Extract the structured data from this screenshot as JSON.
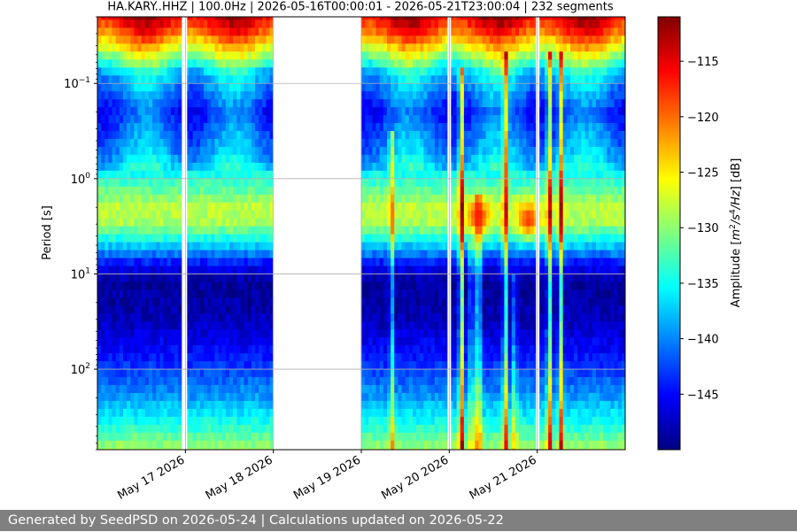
{
  "chart_data": {
    "type": "heatmap",
    "title": "HA.KARY..HHZ | 100.0Hz | 2026-05-16T00:00:01 - 2026-05-21T23:00:04 | 232 segments",
    "xlabel": "",
    "ylabel": "Period [s]",
    "colorbar_label_prefix": "Amplitude [",
    "colorbar_unit_base": "m",
    "colorbar_unit_sup1": "2",
    "colorbar_unit_mid": "/s",
    "colorbar_unit_sup2": "4",
    "colorbar_unit_end": "/Hz",
    "colorbar_label_suffix": "] [dB]",
    "x_tick_labels": [
      "May 17 2026",
      "May 18 2026",
      "May 19 2026",
      "May 20 2026",
      "May 21 2026"
    ],
    "x_tick_days": [
      1,
      2,
      3,
      4,
      5
    ],
    "xlim_days": [
      0,
      6
    ],
    "y_scale": "log",
    "ylim": [
      0.02,
      700
    ],
    "y_invert": true,
    "y_ticks": [
      {
        "base": "10",
        "exp": "−1",
        "value": 0.1
      },
      {
        "base": "10",
        "exp": "0",
        "value": 1
      },
      {
        "base": "10",
        "exp": "1",
        "value": 10
      },
      {
        "base": "10",
        "exp": "2",
        "value": 100
      }
    ],
    "grid": true,
    "colorbar_range": [
      -150,
      -111
    ],
    "colorbar_ticks": [
      {
        "label": "−115",
        "value": -115
      },
      {
        "label": "−120",
        "value": -120
      },
      {
        "label": "−125",
        "value": -125
      },
      {
        "label": "−130",
        "value": -130
      },
      {
        "label": "−135",
        "value": -135
      },
      {
        "label": "−140",
        "value": -140
      },
      {
        "label": "−145",
        "value": -145
      }
    ],
    "colormap": [
      "#00007f",
      "#0000ff",
      "#007fff",
      "#00ffff",
      "#7fff7f",
      "#ffff00",
      "#ff7f00",
      "#ff0000",
      "#7f0000"
    ],
    "data_gaps_days": [
      [
        0.96,
        1.02
      ],
      [
        1.995,
        2.995
      ],
      [
        3.98,
        4.02
      ],
      [
        4.985,
        5.025
      ]
    ],
    "psd_profile": [
      {
        "period": 0.02,
        "db": -114
      },
      {
        "period": 0.03,
        "db": -119
      },
      {
        "period": 0.05,
        "db": -128
      },
      {
        "period": 0.08,
        "db": -137
      },
      {
        "period": 0.2,
        "db": -143
      },
      {
        "period": 0.5,
        "db": -139
      },
      {
        "period": 1.0,
        "db": -134
      },
      {
        "period": 2.0,
        "db": -128
      },
      {
        "period": 3.0,
        "db": -129
      },
      {
        "period": 5.0,
        "db": -137
      },
      {
        "period": 8.0,
        "db": -145
      },
      {
        "period": 12.0,
        "db": -149
      },
      {
        "period": 30.0,
        "db": -148
      },
      {
        "period": 80.0,
        "db": -144
      },
      {
        "period": 200.0,
        "db": -139
      },
      {
        "period": 400.0,
        "db": -134
      },
      {
        "period": 700.0,
        "db": -129
      }
    ],
    "transient_events": [
      {
        "day": 3.35,
        "db_boost": 10,
        "min_period": 0.3
      },
      {
        "day": 4.14,
        "db_boost": 20,
        "min_period": 0.07
      },
      {
        "day": 4.25,
        "db_boost": 9,
        "min_period": 5
      },
      {
        "day": 4.33,
        "db_boost": 16,
        "min_period": 1.5
      },
      {
        "day": 4.64,
        "db_boost": 16,
        "min_period": 0.05
      },
      {
        "day": 4.74,
        "db_boost": 8,
        "min_period": 10
      },
      {
        "day": 5.14,
        "db_boost": 17,
        "min_period": 0.05
      },
      {
        "day": 5.27,
        "db_boost": 16,
        "min_period": 0.05
      }
    ],
    "microseism_hotspots": [
      {
        "day": 4.33,
        "period": 2.5,
        "db": -117
      },
      {
        "day": 4.9,
        "period": 2.7,
        "db": -118
      }
    ]
  },
  "footer": {
    "text": "Generated by SeedPSD on 2026-05-24 | Calculations updated on 2026-05-22"
  }
}
